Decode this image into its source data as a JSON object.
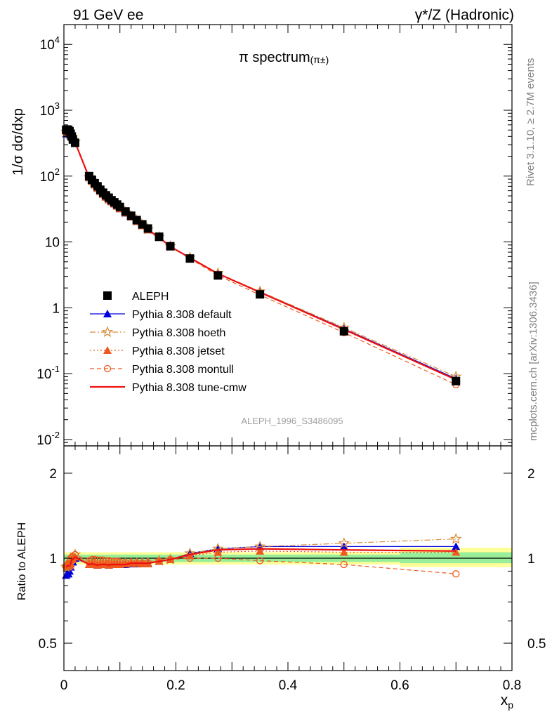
{
  "header": {
    "left": "91 GeV ee",
    "right": "γ*/Z (Hadronic)"
  },
  "plot_title": "π spectrum",
  "plot_title_sub": "(π±)",
  "analysis_id": "ALEPH_1996_S3486095",
  "side_top": "Rivet 3.1.10, ≥ 2.7M events",
  "side_bottom": "mcplots.cern.ch [arXiv:1306.3436]",
  "chart_data": [
    {
      "type": "scatter",
      "panel": "main",
      "title": "π spectrum (π±)",
      "ylabel": "1/σ dσ/dxp",
      "xlim": [
        0,
        0.8
      ],
      "ylim": [
        0.008,
        20000
      ],
      "yscale": "log",
      "yticks": [
        "10^-2",
        "10^-1",
        "1",
        "10",
        "10^2",
        "10^3",
        "10^4"
      ],
      "legend_position": "middle-left",
      "x": [
        0.004,
        0.006,
        0.008,
        0.01,
        0.012,
        0.014,
        0.016,
        0.02,
        0.045,
        0.05,
        0.055,
        0.06,
        0.065,
        0.07,
        0.075,
        0.08,
        0.085,
        0.09,
        0.095,
        0.1,
        0.11,
        0.12,
        0.13,
        0.14,
        0.15,
        0.17,
        0.19,
        0.225,
        0.275,
        0.35,
        0.5,
        0.7
      ],
      "series": [
        {
          "name": "ALEPH",
          "color": "#000000",
          "marker": "square",
          "values": [
            505,
            510,
            500,
            480,
            440,
            400,
            360,
            320,
            100,
            88,
            78,
            70,
            62,
            56,
            51,
            47,
            43,
            40,
            37,
            34,
            29,
            25,
            21.5,
            18.5,
            16,
            12,
            8.6,
            5.6,
            3.1,
            1.6,
            0.44,
            0.077
          ]
        },
        {
          "name": "Pythia 8.308 default",
          "color": "#0000dd",
          "marker": "triangle",
          "dash": "",
          "values": [
            440,
            450,
            440,
            430,
            410,
            390,
            350,
            320,
            95,
            84,
            74,
            66,
            59,
            53,
            48,
            44,
            41,
            38,
            35,
            32,
            27.5,
            24,
            20.5,
            17.8,
            15.3,
            11.7,
            8.5,
            5.8,
            3.3,
            1.75,
            0.48,
            0.084
          ]
        },
        {
          "name": "Pythia 8.308 hoeth",
          "color": "#d98c3a",
          "marker": "star",
          "dash": "8,3,2,3",
          "values": [
            470,
            480,
            470,
            455,
            420,
            400,
            360,
            330,
            96,
            85,
            75,
            67,
            60,
            54,
            49,
            45,
            42,
            39,
            36,
            33,
            28,
            24.5,
            21,
            18,
            15.5,
            11.9,
            8.6,
            5.8,
            3.35,
            1.77,
            0.5,
            0.09
          ]
        },
        {
          "name": "Pythia 8.308 jetset",
          "color": "#ee5a1e",
          "marker": "triangle-filled",
          "dash": "2,3",
          "values": [
            480,
            490,
            470,
            450,
            420,
            395,
            355,
            325,
            95,
            84,
            74,
            66,
            59,
            53,
            48,
            44,
            41,
            38,
            35,
            32,
            27.7,
            24,
            20.6,
            17.7,
            15.3,
            11.7,
            8.5,
            5.7,
            3.25,
            1.7,
            0.46,
            0.08
          ]
        },
        {
          "name": "Pythia 8.308 montull",
          "color": "#ee5a1e",
          "marker": "circle-open",
          "dash": "6,4",
          "values": [
            470,
            480,
            470,
            460,
            430,
            405,
            365,
            330,
            98,
            87,
            77,
            69,
            61,
            55,
            50,
            46,
            42,
            39,
            36,
            33,
            28,
            24.3,
            20.8,
            17.8,
            15.4,
            11.7,
            8.5,
            5.6,
            3.1,
            1.57,
            0.42,
            0.068
          ]
        },
        {
          "name": "Pythia 8.308 tune-cmw",
          "color": "#ee1010",
          "marker": "none",
          "dash": "",
          "values": [
            470,
            480,
            470,
            450,
            420,
            395,
            355,
            325,
            95,
            84,
            74,
            66,
            59,
            53,
            48,
            44,
            41,
            38,
            35,
            32,
            27.6,
            24,
            20.6,
            17.7,
            15.3,
            11.7,
            8.5,
            5.75,
            3.3,
            1.72,
            0.47,
            0.081
          ]
        }
      ]
    },
    {
      "type": "line",
      "panel": "ratio",
      "ylabel": "Ratio to ALEPH",
      "xlabel": "xp",
      "xlim": [
        0,
        0.8
      ],
      "ylim": [
        0.4,
        2.5
      ],
      "yscale": "log",
      "yticks": [
        "0.5",
        "1",
        "2"
      ],
      "xticks": [
        "0",
        "0.2",
        "0.4",
        "0.6",
        "0.8"
      ],
      "band": {
        "x_edges": [
          0.0,
          0.6,
          0.8
        ],
        "green": [
          [
            0.97,
            1.03
          ],
          [
            0.96,
            1.05
          ]
        ],
        "yellow": [
          [
            0.95,
            1.05
          ],
          [
            0.93,
            1.09
          ]
        ]
      },
      "x": [
        0.004,
        0.006,
        0.008,
        0.01,
        0.012,
        0.014,
        0.016,
        0.02,
        0.045,
        0.05,
        0.055,
        0.06,
        0.065,
        0.07,
        0.075,
        0.08,
        0.085,
        0.09,
        0.095,
        0.1,
        0.11,
        0.12,
        0.13,
        0.14,
        0.15,
        0.17,
        0.19,
        0.225,
        0.275,
        0.35,
        0.5,
        0.7
      ],
      "series": [
        {
          "name": "Pythia 8.308 default",
          "values": [
            0.87,
            0.88,
            0.88,
            0.9,
            0.93,
            0.97,
            0.97,
            1.0,
            0.95,
            0.955,
            0.95,
            0.945,
            0.95,
            0.95,
            0.95,
            0.945,
            0.95,
            0.95,
            0.95,
            0.95,
            0.95,
            0.955,
            0.955,
            0.96,
            0.96,
            0.975,
            0.99,
            1.04,
            1.08,
            1.1,
            1.1,
            1.1
          ]
        },
        {
          "name": "Pythia 8.308 hoeth",
          "values": [
            0.93,
            0.94,
            0.94,
            0.95,
            0.96,
            1.0,
            1.0,
            1.03,
            0.96,
            0.965,
            0.96,
            0.955,
            0.96,
            0.96,
            0.96,
            0.955,
            0.96,
            0.96,
            0.96,
            0.96,
            0.96,
            0.96,
            0.96,
            0.965,
            0.965,
            0.98,
            0.99,
            1.04,
            1.08,
            1.1,
            1.13,
            1.17
          ]
        },
        {
          "name": "Pythia 8.308 jetset",
          "values": [
            0.95,
            0.96,
            0.94,
            0.94,
            0.955,
            0.99,
            0.99,
            1.01,
            0.95,
            0.955,
            0.95,
            0.945,
            0.95,
            0.95,
            0.95,
            0.945,
            0.95,
            0.95,
            0.95,
            0.95,
            0.955,
            0.96,
            0.96,
            0.955,
            0.955,
            0.975,
            0.99,
            1.02,
            1.05,
            1.06,
            1.05,
            1.05
          ]
        },
        {
          "name": "Pythia 8.308 montull",
          "values": [
            0.93,
            0.94,
            0.94,
            0.96,
            0.98,
            1.01,
            1.01,
            1.03,
            0.98,
            0.99,
            0.99,
            0.985,
            0.985,
            0.985,
            0.98,
            0.98,
            0.975,
            0.975,
            0.975,
            0.97,
            0.965,
            0.965,
            0.965,
            0.96,
            0.965,
            0.975,
            0.99,
            1.0,
            1.0,
            0.98,
            0.95,
            0.88
          ]
        },
        {
          "name": "Pythia 8.308 tune-cmw",
          "values": [
            0.93,
            0.94,
            0.94,
            0.94,
            0.955,
            0.99,
            0.99,
            1.01,
            0.95,
            0.955,
            0.95,
            0.945,
            0.95,
            0.95,
            0.95,
            0.945,
            0.95,
            0.95,
            0.95,
            0.95,
            0.95,
            0.96,
            0.96,
            0.96,
            0.96,
            0.975,
            0.99,
            1.03,
            1.07,
            1.08,
            1.07,
            1.06
          ]
        }
      ]
    }
  ]
}
